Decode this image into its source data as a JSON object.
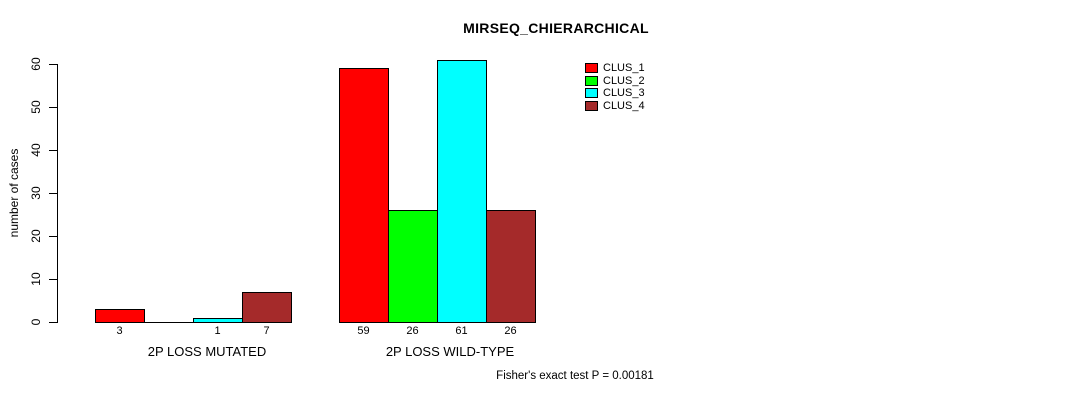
{
  "title": "MIRSEQ_CHIERARCHICAL",
  "annotation": "Fisher's exact test P = 0.00181",
  "chart_data": {
    "type": "bar",
    "title": "MIRSEQ_CHIERARCHICAL",
    "ylabel": "number of cases",
    "xlabel": "",
    "ylim": [
      0,
      60
    ],
    "yticks": [
      0,
      10,
      20,
      30,
      40,
      50,
      60
    ],
    "grid": false,
    "legend_position": "top-right",
    "categories": [
      "2P LOSS MUTATED",
      "2P LOSS WILD-TYPE"
    ],
    "series": [
      {
        "name": "CLUS_1",
        "color": "#FF0000",
        "values": [
          3,
          59
        ]
      },
      {
        "name": "CLUS_2",
        "color": "#00FF00",
        "values": [
          0,
          26
        ]
      },
      {
        "name": "CLUS_3",
        "color": "#00FFFF",
        "values": [
          1,
          61
        ]
      },
      {
        "name": "CLUS_4",
        "color": "#A52A2A",
        "values": [
          7,
          26
        ]
      }
    ],
    "bar_value_labels": [
      [
        "3",
        "",
        "1",
        "7"
      ],
      [
        "59",
        "26",
        "61",
        "26"
      ]
    ],
    "bar_border_color": "#000000",
    "axis_color": "#000000",
    "annotation": "Fisher's exact test P = 0.00181"
  }
}
